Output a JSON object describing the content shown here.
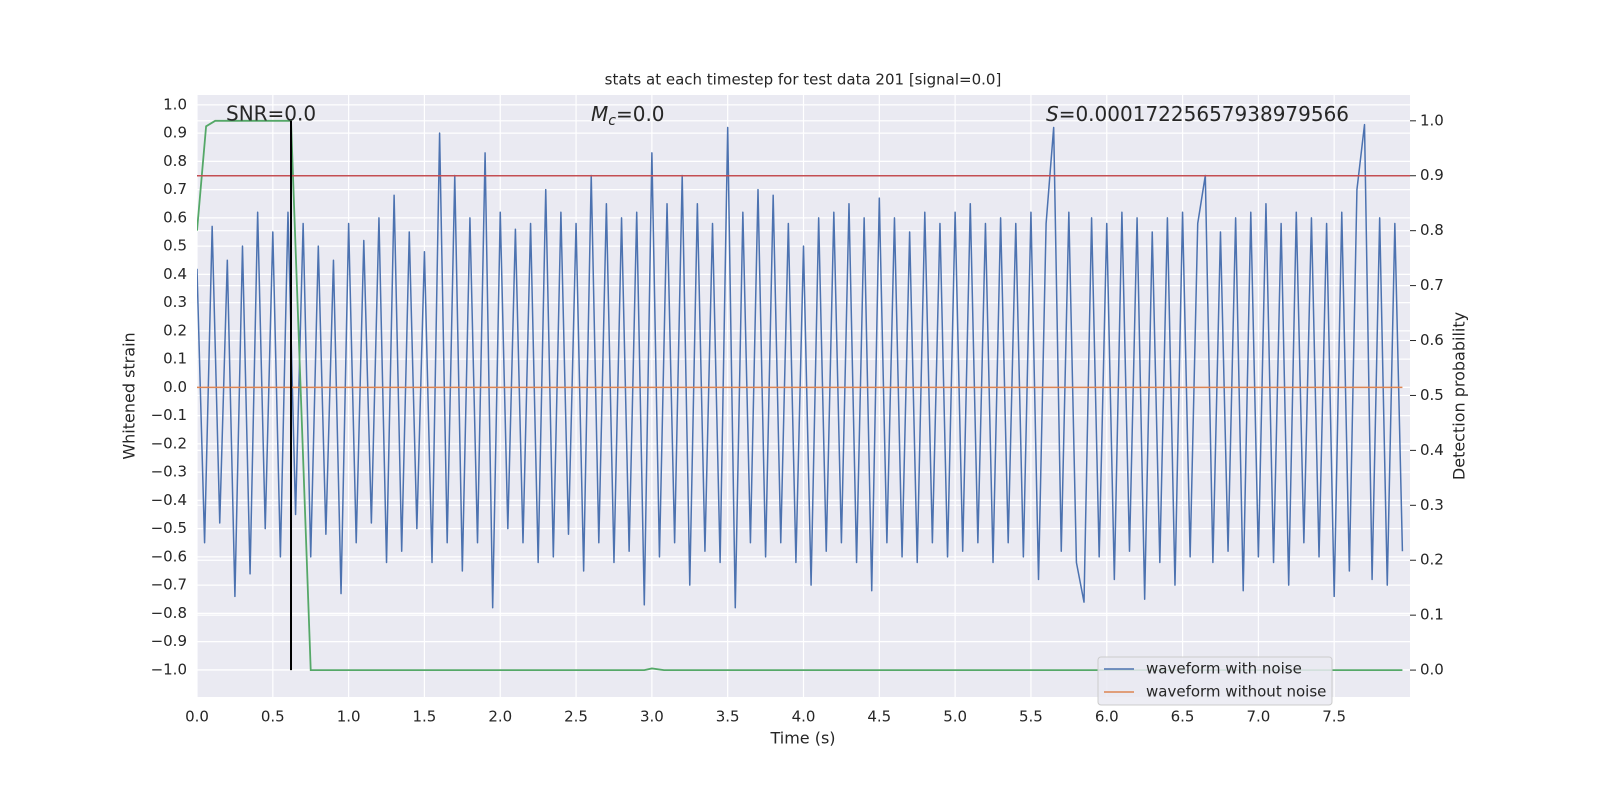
{
  "chart_data": {
    "type": "line",
    "title": "stats at each timestep for test data 201 [signal=0.0]",
    "xlabel": "Time (s)",
    "ylabel": "Whitened strain",
    "y2label": "Detection probability",
    "xlim": [
      0,
      8.0
    ],
    "ylim": [
      -1.096,
      1.035
    ],
    "y2lim": [
      -0.049,
      1.047
    ],
    "grid": true,
    "legend": "lower right",
    "xticks": [
      {
        "value": 0,
        "label": "0.0"
      },
      0.5,
      {
        "value": 1,
        "label": "1.0"
      },
      1.5,
      {
        "value": 2,
        "label": "2.0"
      },
      2.5,
      {
        "value": 3,
        "label": "3.0"
      },
      3.5,
      {
        "value": 4,
        "label": "4.0"
      },
      4.5,
      {
        "value": 5,
        "label": "5.0"
      },
      5.5,
      {
        "value": 6,
        "label": "6.0"
      },
      6.5,
      {
        "value": 7,
        "label": "7.0"
      },
      7.5
    ],
    "yticks": [
      {
        "value": -1,
        "label": "−1.0"
      },
      {
        "value": -0.9,
        "label": "−0.9"
      },
      {
        "value": -0.8,
        "label": "−0.8"
      },
      {
        "value": -0.7,
        "label": "−0.7"
      },
      {
        "value": -0.6,
        "label": "−0.6"
      },
      {
        "value": -0.5,
        "label": "−0.5"
      },
      {
        "value": -0.4,
        "label": "−0.4"
      },
      {
        "value": -0.3,
        "label": "−0.3"
      },
      {
        "value": -0.2,
        "label": "−0.2"
      },
      {
        "value": -0.1,
        "label": "−0.1"
      },
      {
        "value": 0,
        "label": "0.0"
      },
      0.1,
      0.2,
      0.3,
      0.4,
      0.5,
      0.6,
      0.7,
      0.8,
      0.9,
      {
        "value": 1,
        "label": "1.0"
      }
    ],
    "y2ticks": [
      {
        "value": 0,
        "label": "0.0"
      },
      0.1,
      0.2,
      0.3,
      0.4,
      0.5,
      0.6,
      0.7,
      0.8,
      0.9,
      {
        "value": 1,
        "label": "1.0"
      }
    ],
    "series": [
      {
        "name": "waveform with noise",
        "color": "#4c72b0",
        "x": [
          0.0,
          0.05,
          0.1,
          0.15,
          0.2,
          0.25,
          0.3,
          0.35,
          0.4,
          0.45,
          0.5,
          0.55,
          0.6,
          0.65,
          0.7,
          0.75,
          0.8,
          0.85,
          0.9,
          0.95,
          1.0,
          1.05,
          1.1,
          1.15,
          1.2,
          1.25,
          1.3,
          1.35,
          1.4,
          1.45,
          1.5,
          1.55,
          1.6,
          1.65,
          1.7,
          1.75,
          1.8,
          1.85,
          1.9,
          1.95,
          2.0,
          2.05,
          2.1,
          2.15,
          2.2,
          2.25,
          2.3,
          2.35,
          2.4,
          2.45,
          2.5,
          2.55,
          2.6,
          2.65,
          2.7,
          2.75,
          2.8,
          2.85,
          2.9,
          2.95,
          3.0,
          3.05,
          3.1,
          3.15,
          3.2,
          3.25,
          3.3,
          3.35,
          3.4,
          3.45,
          3.5,
          3.55,
          3.6,
          3.65,
          3.7,
          3.75,
          3.8,
          3.85,
          3.9,
          3.95,
          4.0,
          4.05,
          4.1,
          4.15,
          4.2,
          4.25,
          4.3,
          4.35,
          4.4,
          4.45,
          4.5,
          4.55,
          4.6,
          4.65,
          4.7,
          4.75,
          4.8,
          4.85,
          4.9,
          4.95,
          5.0,
          5.05,
          5.1,
          5.15,
          5.2,
          5.25,
          5.3,
          5.35,
          5.4,
          5.45,
          5.5,
          5.55,
          5.6,
          5.65,
          5.7,
          5.75,
          5.8,
          5.85,
          5.9,
          5.95,
          6.0,
          6.05,
          6.1,
          6.15,
          6.2,
          6.25,
          6.3,
          6.35,
          6.4,
          6.45,
          6.5,
          6.55,
          6.6,
          6.65,
          6.7,
          6.75,
          6.8,
          6.85,
          6.9,
          6.95,
          7.0,
          7.05,
          7.1,
          7.15,
          7.2,
          7.25,
          7.3,
          7.35,
          7.4,
          7.45,
          7.5,
          7.55,
          7.6,
          7.65,
          7.7,
          7.75,
          7.8,
          7.85,
          7.9,
          7.95
        ],
        "values": [
          0.42,
          -0.55,
          0.57,
          -0.48,
          0.45,
          -0.74,
          0.5,
          -0.66,
          0.62,
          -0.5,
          0.55,
          -0.6,
          0.62,
          -0.45,
          0.58,
          -0.6,
          0.5,
          -0.52,
          0.45,
          -0.73,
          0.58,
          -0.55,
          0.52,
          -0.48,
          0.6,
          -0.62,
          0.68,
          -0.58,
          0.55,
          -0.5,
          0.48,
          -0.62,
          0.9,
          -0.55,
          0.75,
          -0.65,
          0.6,
          -0.55,
          0.83,
          -0.78,
          0.62,
          -0.5,
          0.56,
          -0.55,
          0.58,
          -0.62,
          0.7,
          -0.6,
          0.62,
          -0.52,
          0.58,
          -0.65,
          0.75,
          -0.55,
          0.65,
          -0.62,
          0.6,
          -0.58,
          0.62,
          -0.77,
          0.83,
          -0.6,
          0.65,
          -0.55,
          0.75,
          -0.7,
          0.65,
          -0.58,
          0.58,
          -0.62,
          0.92,
          -0.78,
          0.62,
          -0.55,
          0.7,
          -0.6,
          0.68,
          -0.55,
          0.58,
          -0.62,
          0.5,
          -0.7,
          0.6,
          -0.58,
          0.62,
          -0.55,
          0.65,
          -0.62,
          0.6,
          -0.72,
          0.67,
          -0.55,
          0.6,
          -0.6,
          0.55,
          -0.62,
          0.62,
          -0.55,
          0.58,
          -0.6,
          0.62,
          -0.58,
          0.65,
          -0.55,
          0.58,
          -0.62,
          0.6,
          -0.55,
          0.58,
          -0.6,
          0.62,
          -0.68,
          0.58,
          0.92,
          -0.58,
          0.62,
          -0.62,
          -0.76,
          0.6,
          -0.6,
          0.58,
          -0.68,
          0.62,
          -0.58,
          0.6,
          -0.75,
          0.55,
          -0.62,
          0.6,
          -0.7,
          0.62,
          -0.6,
          0.58,
          0.75,
          -0.62,
          0.55,
          -0.58,
          0.6,
          -0.72,
          0.62,
          -0.6,
          0.65,
          -0.62,
          0.58,
          -0.7,
          0.62,
          -0.55,
          0.6,
          -0.6,
          0.58,
          -0.74,
          0.62,
          -0.65,
          0.7,
          0.93,
          -0.68,
          0.6,
          -0.7,
          0.58,
          -0.58
        ]
      },
      {
        "name": "waveform without noise",
        "color": "#dd8452",
        "x": [
          0,
          7.95
        ],
        "values": [
          0,
          0
        ]
      }
    ],
    "detection_probability": {
      "color": "#55a868",
      "axis": "y2",
      "x": [
        0,
        0.06,
        0.12,
        0.62,
        0.75,
        2.95,
        3.0,
        3.08,
        7.95
      ],
      "values": [
        0.8,
        0.99,
        1.0,
        1.0,
        0.0,
        0.0,
        0.003,
        0.0,
        0.0
      ]
    },
    "threshold": {
      "value": 0.9,
      "axis": "y2",
      "color": "#c44e52"
    },
    "marker_line": {
      "x": 0.62,
      "ymin": 0.0,
      "ymax": 1.0,
      "axis": "y2",
      "color": "#000000"
    },
    "annotations": {
      "snr": {
        "text": "SNR=0.0"
      },
      "mc": {
        "symbol": "M",
        "subscript": "c",
        "text": "=0.0"
      },
      "s": {
        "symbol": "S",
        "text": "=0.00017225657938979566"
      }
    }
  }
}
